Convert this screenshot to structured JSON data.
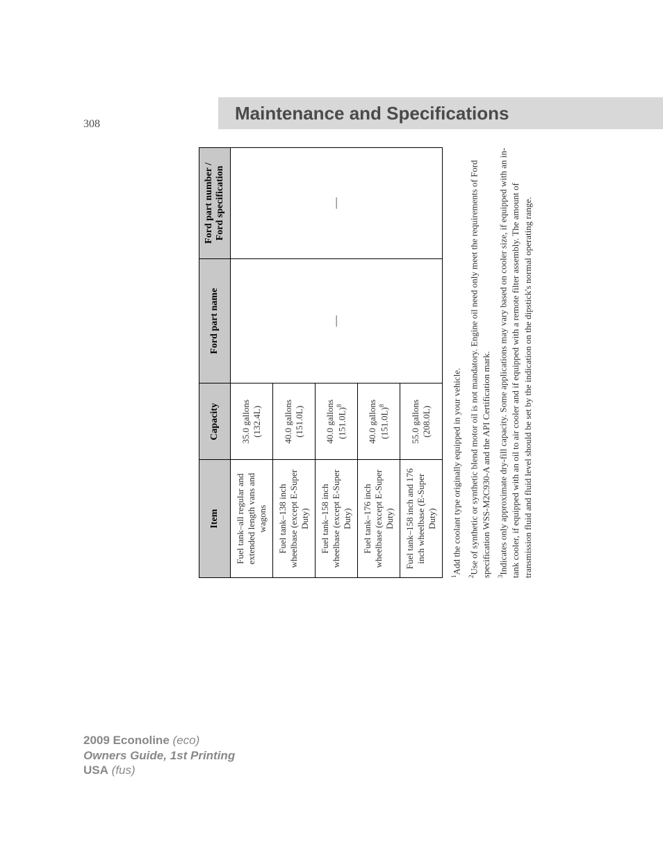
{
  "page_number": "308",
  "header": {
    "title": "Maintenance and Specifications"
  },
  "table": {
    "columns": [
      "Item",
      "Capacity",
      "Ford part name",
      "Ford part number / Ford specification"
    ],
    "rows": [
      {
        "item": "Fuel tank–all regular and extended length vans and wagons",
        "capacity": "35.0 gallons (132.4L)"
      },
      {
        "item": "Fuel tank–138 inch wheelbase (except E-Super Duty)",
        "capacity": "40.0 gallons (151.0L)"
      },
      {
        "item": "Fuel tank–158 inch wheelbase (except E-Super Duty)",
        "capacity_main": "40.0 gallons",
        "capacity_sub": "(151.0L)",
        "capacity_sup": "8"
      },
      {
        "item": "Fuel tank–176 inch wheelbase (except E-Super Duty)",
        "capacity_main": "40.0 gallons",
        "capacity_sub": "(151.0L)",
        "capacity_sup": "8"
      },
      {
        "item": "Fuel tank–158 inch and 176 inch wheelbase (E-Super Duty)",
        "capacity": "55.0 gallons (208.0L)"
      }
    ],
    "partname_dash": "—",
    "spec_dash": "—"
  },
  "footnotes": {
    "n1": "Add the coolant type originally equipped in your vehicle.",
    "n2": "Use of synthetic or synthetic blend motor oil is not mandatory. Engine oil need only meet the requirements of Ford specification WSS-M2C930-A and the API Certification mark.",
    "n3": "Indicates only approximate dry-fill capacity. Some applications may vary based on cooler size, if equipped with an in-tank cooler, if equipped with an oil to air cooler and if equipped with a remote filter assembly. The amount of transmission fluid and fluid level should be set by the indication on the dipstick's normal operating range."
  },
  "footer": {
    "line1_model": "2009 Econoline",
    "line1_code": "(eco)",
    "line2": "Owners Guide, 1st Printing",
    "line3_bold": "USA",
    "line3_code": "(fus)"
  },
  "style": {
    "header_bg": "#d8d8d8",
    "table_header_bg": "#c8c8c8",
    "border_color": "#000000",
    "text_color": "#333333",
    "footer_color": "#888888"
  }
}
